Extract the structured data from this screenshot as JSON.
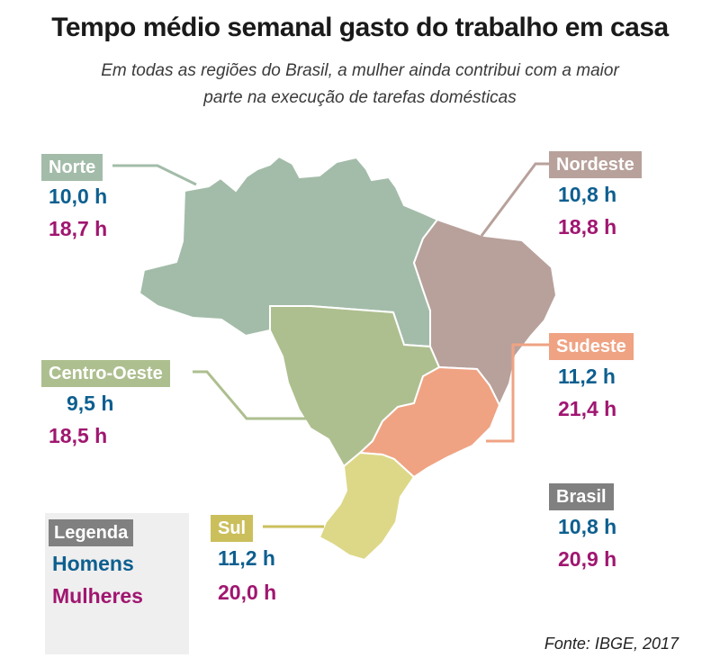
{
  "title": "Tempo médio semanal gasto do trabalho em casa",
  "subtitle_line1": "Em todas as regiões do Brasil, a mulher ainda contribui com a maior",
  "subtitle_line2": "parte na execução de tarefas domésticas",
  "regions": {
    "norte": {
      "name": "Norte",
      "men": "10,0 h",
      "women": "18,7 h",
      "color": "#a3bca9"
    },
    "nordeste": {
      "name": "Nordeste",
      "men": "10,8 h",
      "women": "18,8 h",
      "color": "#b8a19b"
    },
    "centro_oeste": {
      "name": "Centro-Oeste",
      "men": "9,5 h",
      "women": "18,5 h",
      "color": "#aebf8f"
    },
    "sudeste": {
      "name": "Sudeste",
      "men": "11,2 h",
      "women": "21,4 h",
      "color": "#efa383"
    },
    "sul": {
      "name": "Sul",
      "men": "11,2 h",
      "women": "20,0 h",
      "color": "#ddd888"
    }
  },
  "brasil": {
    "name": "Brasil",
    "men": "10,8 h",
    "women": "20,9 h"
  },
  "legend": {
    "title": "Legenda",
    "men": "Homens",
    "women": "Mulheres"
  },
  "colors": {
    "men": "#0d5f8f",
    "women": "#a01670",
    "label_norte": "#a3bca9",
    "label_nordeste": "#b8a19b",
    "label_co": "#aebf8f",
    "label_sudeste": "#efa383",
    "label_sul": "#cbbf5c",
    "label_brasil": "#808080"
  },
  "source": "Fonte: IBGE, 2017"
}
